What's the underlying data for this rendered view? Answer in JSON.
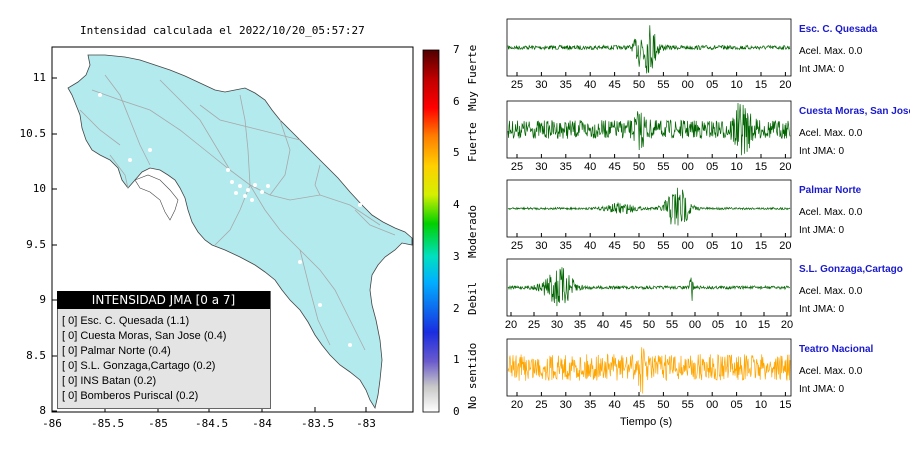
{
  "chart_data": [
    {
      "type": "map",
      "title": "Intensidad calculada el 2022/10/20_05:57:27",
      "x_ticks": [
        "-86",
        "-85.5",
        "-85",
        "-84.5",
        "-84",
        "-83.5",
        "-83"
      ],
      "y_ticks": [
        "11",
        "10.5",
        "10",
        "9.5",
        "9",
        "8.5",
        "8"
      ],
      "xlim": [
        -86,
        -82.7
      ],
      "ylim": [
        8,
        11.3
      ],
      "legend_title": "INTENSIDAD JMA [0 a 7]",
      "legend_items": [
        "[ 0]  Esc. C. Quesada (1.1)",
        "[ 0]  Cuesta Moras, San Jose (0.4)",
        "[ 0]  Palmar Norte (0.4)",
        "[ 0]  S.L. Gonzaga,Cartago (0.2)",
        "[ 0]  INS Batan (0.2)",
        "[ 0]  Bomberos Puriscal (0.2)"
      ],
      "colors": {
        "land": "#b3eaee",
        "sea": "#ffffff",
        "roads": "#a8a8a8",
        "border": "#555555"
      }
    },
    {
      "type": "heatmap",
      "colorbar_ticks": [
        "7",
        "6",
        "5",
        "4",
        "3",
        "2",
        "1",
        "0"
      ],
      "colorbar_range": [
        0,
        7
      ],
      "category_labels": [
        "Muy Fuerte",
        "Fuerte",
        "Moderado",
        "Debil",
        "No sentido"
      ],
      "colors": [
        "#ffffff",
        "#c8c8c8",
        "#6a5acd",
        "#1a2de0",
        "#00b0ff",
        "#00e0c0",
        "#00d000",
        "#d4f000",
        "#ffd000",
        "#ff8000",
        "#ff0000",
        "#c00000",
        "#500000"
      ]
    },
    {
      "type": "line",
      "xlabel": "Tiempo (s)",
      "series": [
        {
          "name": "Esc. C. Quesada",
          "color": "#006400",
          "accel": "Acel. Max. 0.0",
          "jma": "Int JMA: 0",
          "x_ticks": [
            "25",
            "30",
            "35",
            "40",
            "45",
            "50",
            "55",
            "00",
            "05",
            "10",
            "15",
            "20"
          ],
          "noise": 0.08,
          "events": [
            {
              "t": 0.5,
              "amp": 0.9,
              "w": 0.03
            },
            {
              "t": 0.47,
              "amp": 0.5,
              "w": 0.02
            }
          ]
        },
        {
          "name": "Cuesta Moras, San Jose",
          "color": "#006400",
          "accel": "Acel. Max. 0.0",
          "jma": "Int JMA: 0",
          "x_ticks": [
            "25",
            "30",
            "35",
            "40",
            "45",
            "50",
            "55",
            "00",
            "05",
            "10",
            "15",
            "20"
          ],
          "noise": 0.35,
          "events": [
            {
              "t": 0.83,
              "amp": 0.85,
              "w": 0.03
            },
            {
              "t": 0.47,
              "amp": 0.5,
              "w": 0.02
            }
          ]
        },
        {
          "name": "Palmar Norte",
          "color": "#006400",
          "accel": "Acel. Max. 0.0",
          "jma": "Int JMA: 0",
          "x_ticks": [
            "25",
            "30",
            "35",
            "40",
            "45",
            "50",
            "55",
            "00",
            "05",
            "10",
            "15",
            "20"
          ],
          "noise": 0.04,
          "events": [
            {
              "t": 0.6,
              "amp": 0.9,
              "w": 0.04
            },
            {
              "t": 0.4,
              "amp": 0.2,
              "w": 0.05
            }
          ]
        },
        {
          "name": "S.L. Gonzaga,Cartago",
          "color": "#006400",
          "accel": "Acel. Max. 0.0",
          "jma": "Int JMA: 0",
          "x_ticks": [
            "20",
            "25",
            "30",
            "35",
            "40",
            "45",
            "50",
            "55",
            "00",
            "05",
            "10",
            "15",
            "20"
          ],
          "noise": 0.06,
          "events": [
            {
              "t": 0.18,
              "amp": 0.75,
              "w": 0.05
            },
            {
              "t": 0.65,
              "amp": 0.9,
              "w": 0.005
            }
          ]
        },
        {
          "name": "Teatro Nacional",
          "color": "#ffa500",
          "accel": "Acel. Max. 0.0",
          "jma": "Int JMA: 0",
          "x_ticks": [
            "20",
            "25",
            "30",
            "35",
            "40",
            "45",
            "50",
            "55",
            "00",
            "05",
            "10",
            "15"
          ],
          "noise": 0.5,
          "events": [
            {
              "t": 0.47,
              "amp": 0.95,
              "w": 0.01
            }
          ]
        }
      ]
    }
  ]
}
